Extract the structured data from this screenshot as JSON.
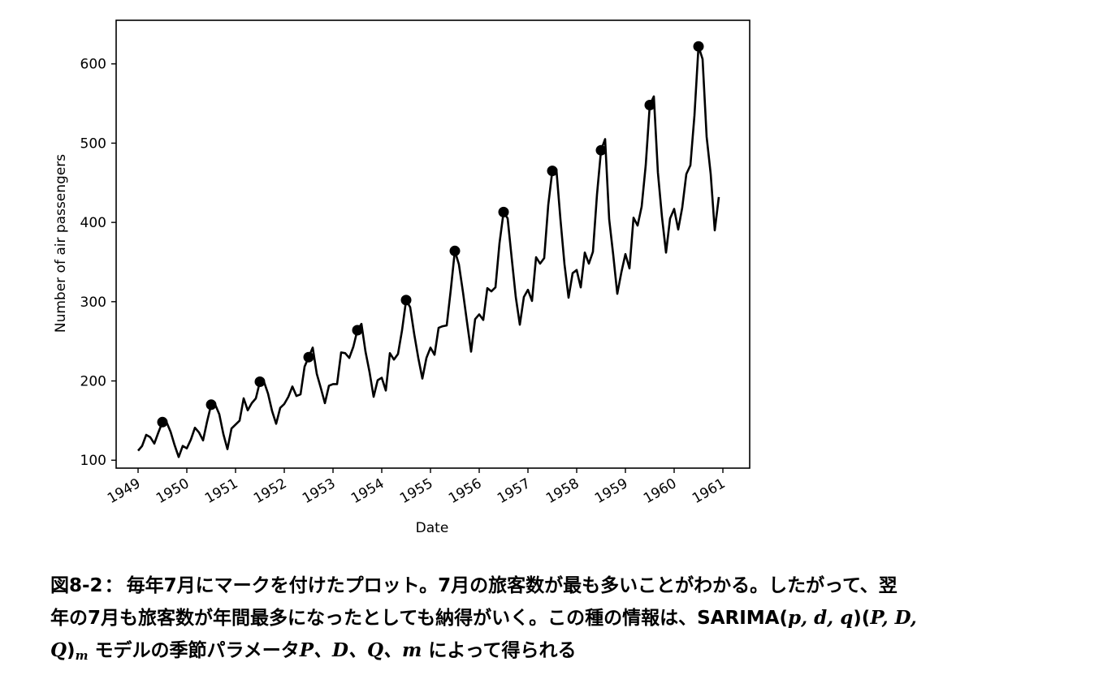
{
  "chart_data": {
    "type": "line",
    "xlabel": "Date",
    "ylabel": "Number of air passengers",
    "ylim": [
      90,
      655
    ],
    "xlim": [
      1948.55,
      1961.55
    ],
    "yticks": [
      100,
      200,
      300,
      400,
      500,
      600
    ],
    "xtick_labels": [
      "1949",
      "1950",
      "1951",
      "1952",
      "1953",
      "1954",
      "1955",
      "1956",
      "1957",
      "1958",
      "1959",
      "1960",
      "1961"
    ],
    "grid": false,
    "series": [
      {
        "name": "passengers",
        "start_year": 1949,
        "frequency": "monthly",
        "values": [
          112,
          118,
          132,
          129,
          121,
          135,
          148,
          148,
          136,
          119,
          104,
          118,
          115,
          126,
          141,
          135,
          125,
          149,
          170,
          170,
          158,
          133,
          114,
          140,
          145,
          150,
          178,
          163,
          172,
          178,
          199,
          199,
          184,
          162,
          146,
          166,
          171,
          180,
          193,
          181,
          183,
          218,
          230,
          242,
          209,
          191,
          172,
          194,
          196,
          196,
          236,
          235,
          229,
          243,
          264,
          272,
          237,
          211,
          180,
          201,
          204,
          188,
          235,
          227,
          234,
          264,
          302,
          293,
          259,
          229,
          203,
          229,
          242,
          233,
          267,
          269,
          270,
          315,
          364,
          347,
          312,
          274,
          237,
          278,
          284,
          277,
          317,
          313,
          318,
          374,
          413,
          405,
          355,
          306,
          271,
          306,
          315,
          301,
          356,
          348,
          355,
          422,
          465,
          467,
          404,
          347,
          305,
          336,
          340,
          318,
          362,
          348,
          363,
          435,
          491,
          505,
          404,
          359,
          310,
          337,
          360,
          342,
          406,
          396,
          420,
          472,
          548,
          559,
          463,
          407,
          362,
          405,
          417,
          391,
          419,
          461,
          472,
          535,
          622,
          606,
          508,
          461,
          390,
          432
        ]
      }
    ],
    "markers": {
      "name": "July",
      "points": [
        {
          "year": 1949,
          "value": 148
        },
        {
          "year": 1950,
          "value": 170
        },
        {
          "year": 1951,
          "value": 199
        },
        {
          "year": 1952,
          "value": 230
        },
        {
          "year": 1953,
          "value": 264
        },
        {
          "year": 1954,
          "value": 302
        },
        {
          "year": 1955,
          "value": 364
        },
        {
          "year": 1956,
          "value": 413
        },
        {
          "year": 1957,
          "value": 465
        },
        {
          "year": 1958,
          "value": 491
        },
        {
          "year": 1959,
          "value": 548
        },
        {
          "year": 1960,
          "value": 622
        }
      ]
    }
  },
  "caption": {
    "label": "図8-2",
    "separator": "：",
    "line1": "毎年7月にマークを付けたプロット。7月の旅客数が最も多いことがわかる。したがって、翌",
    "line2_a": "年の7月も旅客数が年間最多になったとしても納得がいく。この種の情報は、SARIMA(",
    "line2_params": "p, d, q",
    "line2_b": ")(",
    "line2_params2": "P, D,",
    "line3_q": "Q",
    "line3_close": ")",
    "line3_sub": "m",
    "line3_a": " モデルの季節パラメータ",
    "line3_params": "P、D、Q、m",
    "line3_b": " によって得られる"
  }
}
